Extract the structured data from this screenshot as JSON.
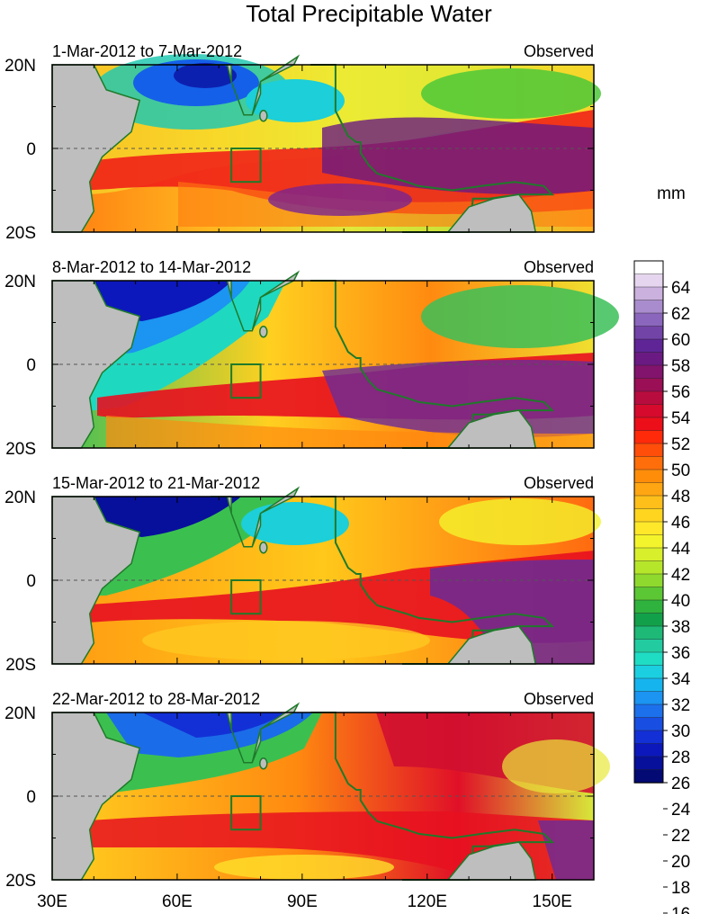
{
  "title": "Total Precipitable Water",
  "unit_label": "mm",
  "panels": [
    {
      "period": "1-Mar-2012 to 7-Mar-2012",
      "status": "Observed"
    },
    {
      "period": "8-Mar-2012 to 14-Mar-2012",
      "status": "Observed"
    },
    {
      "period": "15-Mar-2012 to 21-Mar-2012",
      "status": "Observed"
    },
    {
      "period": "22-Mar-2012 to 28-Mar-2012",
      "status": "Observed"
    }
  ],
  "lat_labels": [
    "20N",
    "0",
    "20S"
  ],
  "lon_labels": [
    "30E",
    "60E",
    "90E",
    "120E",
    "150E"
  ],
  "lon_range": [
    30,
    160
  ],
  "lat_range": [
    -20,
    20
  ],
  "study_box": {
    "lon": [
      73,
      80
    ],
    "lat": [
      -8,
      0
    ]
  },
  "colorbar": {
    "labels": [
      "64",
      "62",
      "60",
      "58",
      "56",
      "54",
      "52",
      "50",
      "48",
      "46",
      "44",
      "42",
      "40",
      "38",
      "36",
      "34",
      "32",
      "30",
      "28",
      "26",
      "24",
      "22",
      "20",
      "18",
      "16"
    ],
    "colors": [
      "#ffffff",
      "#e6d5ee",
      "#cbb1de",
      "#a98ccd",
      "#8a66bc",
      "#7244a8",
      "#5f2596",
      "#6a1a82",
      "#82146d",
      "#9a0f55",
      "#b90c3e",
      "#d50a2c",
      "#ec0f1a",
      "#ff2a0a",
      "#ff4e0a",
      "#ff6e0a",
      "#ff8d0a",
      "#ffa612",
      "#ffbf1a",
      "#ffd520",
      "#ffe82a",
      "#f4f42c",
      "#d8f02c",
      "#b6e62a",
      "#8fd92e",
      "#5cc734",
      "#2fb23e",
      "#13a04a",
      "#1eb877",
      "#22cca0",
      "#1fdcc4",
      "#1ccfe0",
      "#16b4ee",
      "#1b94f2",
      "#1c70ec",
      "#184ee2",
      "#1330d6",
      "#0c18bb",
      "#07109a",
      "#030a73"
    ]
  }
}
